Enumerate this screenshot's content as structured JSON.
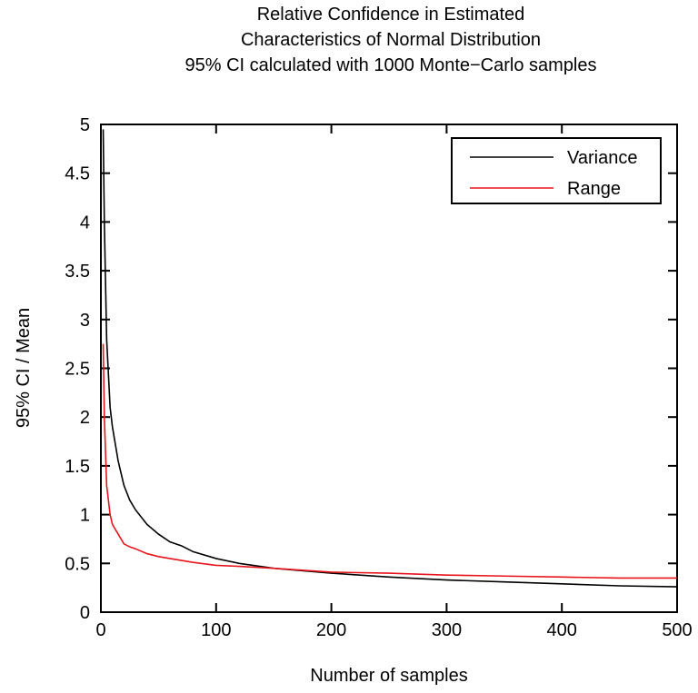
{
  "chart_data": {
    "type": "line",
    "title": [
      "Relative Confidence in Estimated",
      "Characteristics of Normal Distribution",
      "95% CI calculated with 1000 Monte−Carlo samples"
    ],
    "x_label": "Number of samples",
    "y_label": "95% CI / Mean",
    "x": [
      2,
      3,
      5,
      8,
      10,
      15,
      20,
      25,
      30,
      40,
      50,
      60,
      70,
      80,
      100,
      120,
      150,
      200,
      250,
      300,
      350,
      400,
      450,
      500
    ],
    "series": [
      {
        "name": "Variance",
        "color": "#000000",
        "values": [
          4.95,
          4.0,
          2.8,
          2.1,
          1.9,
          1.55,
          1.3,
          1.15,
          1.05,
          0.9,
          0.8,
          0.72,
          0.68,
          0.62,
          0.55,
          0.5,
          0.45,
          0.4,
          0.36,
          0.33,
          0.31,
          0.29,
          0.27,
          0.26
        ]
      },
      {
        "name": "Range",
        "color": "#e8141c",
        "values": [
          2.75,
          2.0,
          1.3,
          1.0,
          0.9,
          0.8,
          0.7,
          0.67,
          0.65,
          0.6,
          0.57,
          0.55,
          0.53,
          0.51,
          0.48,
          0.47,
          0.45,
          0.41,
          0.4,
          0.38,
          0.37,
          0.36,
          0.35,
          0.35
        ]
      }
    ],
    "xlim": [
      0,
      500
    ],
    "xticks": [
      0,
      100,
      200,
      300,
      400,
      500
    ],
    "ylim": [
      0,
      5
    ],
    "yticks": [
      0,
      0.5,
      1,
      1.5,
      2,
      2.5,
      3,
      3.5,
      4,
      4.5,
      5
    ],
    "legend": "top-right"
  }
}
